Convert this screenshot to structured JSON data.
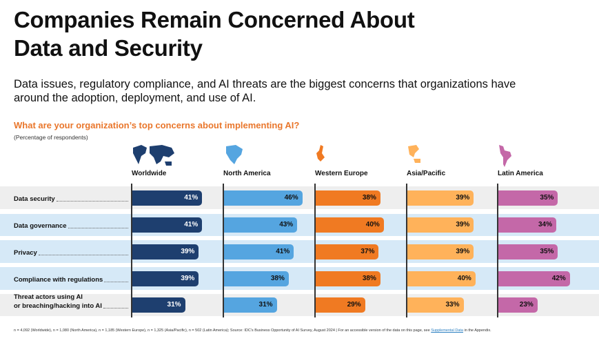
{
  "title": "Companies Remain Concerned About Data and Security",
  "subtitle": "Data issues, regulatory compliance, and AI threats are the biggest concerns that organizations have around the adoption, deployment, and use of AI.",
  "question": "What are your organization’s top concerns about implementing AI?",
  "note": "(Percentage of respondents)",
  "chart_data": {
    "type": "bar",
    "orientation": "horizontal",
    "unit": "%",
    "categories": [
      "Data security",
      "Data governance",
      "Privacy",
      "Compliance with regulations",
      "Threat actors using AI\nor breaching/hacking into AI"
    ],
    "series": [
      {
        "name": "Worldwide",
        "color": "#1e3f6f",
        "label_color": "#ffffff",
        "map_icon": "world-map-icon",
        "values": [
          41,
          41,
          39,
          39,
          31
        ]
      },
      {
        "name": "North America",
        "color": "#55a5e0",
        "label_color": "#111111",
        "map_icon": "north-america-map-icon",
        "values": [
          46,
          43,
          41,
          38,
          31
        ]
      },
      {
        "name": "Western Europe",
        "color": "#f07a22",
        "label_color": "#111111",
        "map_icon": "europe-map-icon",
        "values": [
          38,
          40,
          37,
          38,
          29
        ]
      },
      {
        "name": "Asia/Pacific",
        "color": "#ffb25a",
        "label_color": "#111111",
        "map_icon": "asia-pacific-map-icon",
        "values": [
          39,
          39,
          39,
          40,
          33
        ]
      },
      {
        "name": "Latin America",
        "color": "#c468a8",
        "label_color": "#111111",
        "map_icon": "latin-america-map-icon",
        "values": [
          35,
          34,
          35,
          42,
          23
        ]
      }
    ],
    "row_colors": [
      "#eeeeee",
      "#d6e9f7",
      "#d6e9f7",
      "#d6e9f7",
      "#eeeeee"
    ]
  },
  "footer": {
    "text": "n = 4,092 (Worldwide), n = 1,080 (North America), n = 1,185 (Western Europe), n = 1,325 (Asia/Pacific), n = 502 (Latin America); Source: IDC's Business Opportunity of AI Survey, August 2024  |  For an accessible version of the data on this page, see ",
    "link": "Supplemental Data",
    "tail": " in the Appendix."
  }
}
